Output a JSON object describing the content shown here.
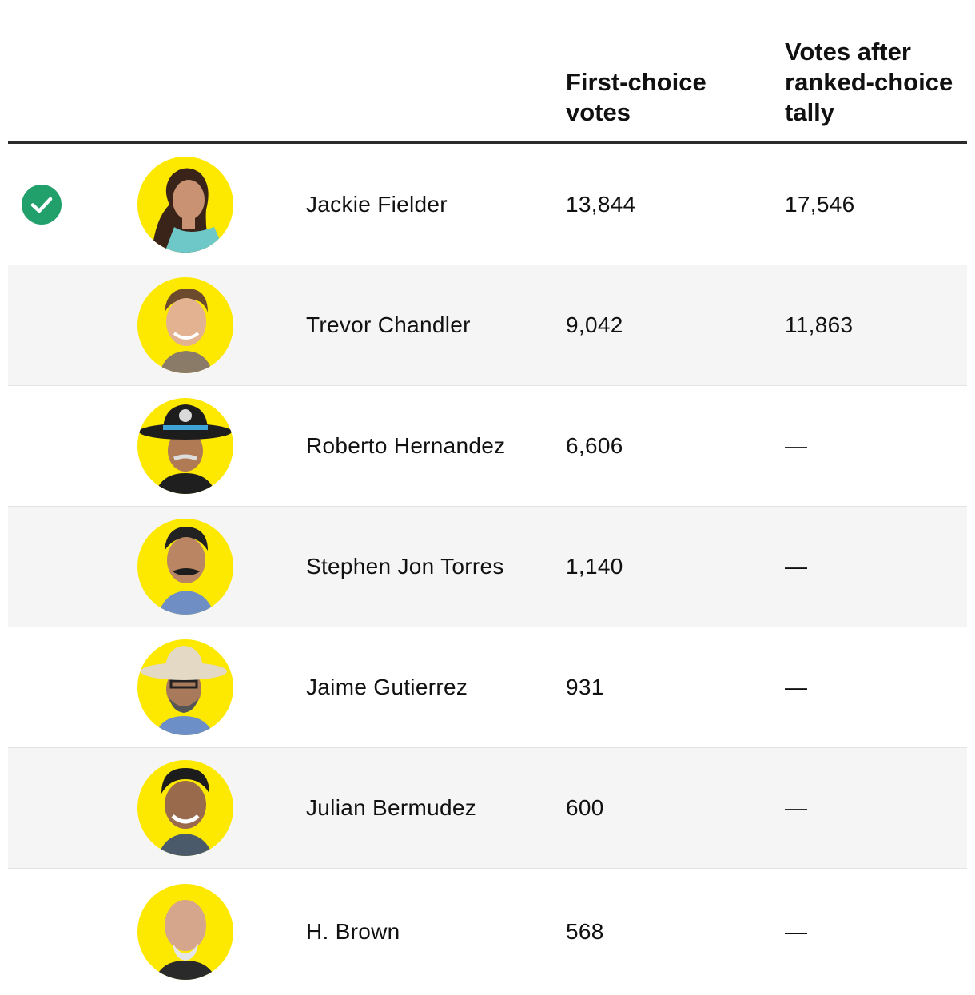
{
  "table": {
    "headers": {
      "first_choice": "First-choice votes",
      "after_tally": "Votes after ranked-choice tally"
    },
    "winner_icon": "checkmark-circle-icon",
    "colors": {
      "avatar_bg": "#fde800",
      "winner": "#21a06b",
      "header_rule": "#2b2b2b",
      "alt_row": "#f5f5f5"
    },
    "rows": [
      {
        "name": "Jackie Fielder",
        "first_choice": "13,844",
        "final": "17,546",
        "winner": true
      },
      {
        "name": "Trevor Chandler",
        "first_choice": "9,042",
        "final": "11,863",
        "winner": false
      },
      {
        "name": "Roberto Hernandez",
        "first_choice": "6,606",
        "final": "—",
        "winner": false
      },
      {
        "name": "Stephen Jon Torres",
        "first_choice": "1,140",
        "final": "—",
        "winner": false
      },
      {
        "name": "Jaime Gutierrez",
        "first_choice": "931",
        "final": "—",
        "winner": false
      },
      {
        "name": "Julian Bermudez",
        "first_choice": "600",
        "final": "—",
        "winner": false
      },
      {
        "name": "H. Brown",
        "first_choice": "568",
        "final": "—",
        "winner": false
      }
    ]
  }
}
